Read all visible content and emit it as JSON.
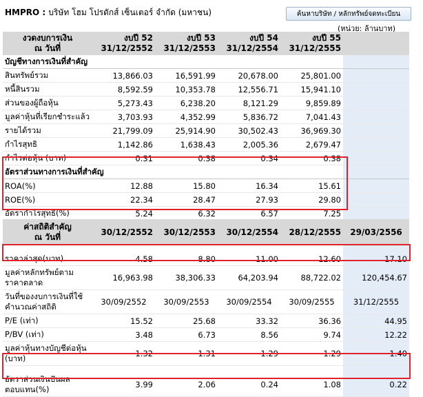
{
  "header": {
    "ticker": "HMPRO",
    "separator": " : ",
    "company_name": "บริษัท โฮม โปรดักส์ เซ็นเตอร์ จำกัด (มหาชน)",
    "search_button_label": "ค้นหาบริษัท / หลักทรัพย์จดทะเบียน",
    "unit_label": "(หน่วย: ล้านบาท)"
  },
  "financials": {
    "period_label": [
      "งวดงบการเงิน",
      "ณ วันที่"
    ],
    "columns": [
      {
        "period": "งบปี 52",
        "date": "31/12/2552"
      },
      {
        "period": "งบปี 53",
        "date": "31/12/2553"
      },
      {
        "period": "งบปี 54",
        "date": "31/12/2554"
      },
      {
        "period": "งบปี 55",
        "date": "31/12/2555"
      }
    ],
    "accounts_title": "บัญชีทางการเงินที่สำคัญ",
    "accounts": [
      {
        "label": "สินทรัพย์รวม",
        "values": [
          "13,866.03",
          "16,591.99",
          "20,678.00",
          "25,801.00"
        ]
      },
      {
        "label": "หนี้สินรวม",
        "values": [
          "8,592.59",
          "10,353.78",
          "12,556.71",
          "15,941.10"
        ]
      },
      {
        "label": "ส่วนของผู้ถือหุ้น",
        "values": [
          "5,273.43",
          "6,238.20",
          "8,121.29",
          "9,859.89"
        ]
      },
      {
        "label": "มูลค่าหุ้นที่เรียกชำระแล้ว",
        "values": [
          "3,703.93",
          "4,352.99",
          "5,836.72",
          "7,041.43"
        ]
      },
      {
        "label": "รายได้รวม",
        "values": [
          "21,799.09",
          "25,914.90",
          "30,502.43",
          "36,969.30"
        ]
      },
      {
        "label": "กำไรสุทธิ",
        "values": [
          "1,142.86",
          "1,638.43",
          "2,005.36",
          "2,679.47"
        ]
      },
      {
        "label": "กำไรต่อหุ้น (บาท)",
        "values": [
          "0.31",
          "0.38",
          "0.34",
          "0.38"
        ]
      }
    ],
    "ratios_title": "อัตราส่วนทางการเงินที่สำคัญ",
    "ratios": [
      {
        "label": "ROA(%)",
        "values": [
          "12.88",
          "15.80",
          "16.34",
          "15.61"
        ]
      },
      {
        "label": "ROE(%)",
        "values": [
          "22.34",
          "28.47",
          "27.93",
          "29.80"
        ]
      },
      {
        "label": "อัตรากำไรสุทธิ(%)",
        "values": [
          "5.24",
          "6.32",
          "6.57",
          "7.25"
        ]
      }
    ]
  },
  "stats": {
    "label": [
      "ค่าสถิติสำคัญ",
      "ณ วันที่"
    ],
    "dates": [
      "30/12/2552",
      "30/12/2553",
      "30/12/2554",
      "28/12/2555",
      "29/03/2556"
    ],
    "rows": [
      {
        "label": "ราคาล่าสุด(บาท)",
        "values": [
          "4.58",
          "8.80",
          "11.00",
          "12.60",
          "17.10"
        ]
      },
      {
        "label": "มูลค่าหลักทรัพย์ตามราคาตลาด",
        "values": [
          "16,963.98",
          "38,306.33",
          "64,203.94",
          "88,722.02",
          "120,454.67"
        ]
      },
      {
        "label": "วันที่ของงบการเงินที่ใช้คำนวณค่าสถิติ",
        "values": [
          "30/09/2552",
          "30/09/2553",
          "30/09/2554",
          "30/09/2555",
          "31/12/2555"
        ]
      },
      {
        "label": "P/E (เท่า)",
        "values": [
          "15.52",
          "25.68",
          "33.32",
          "36.36",
          "44.95"
        ]
      },
      {
        "label": "P/BV (เท่า)",
        "values": [
          "3.48",
          "6.73",
          "8.56",
          "9.74",
          "12.22"
        ]
      },
      {
        "label": "มูลค่าหุ้นทางบัญชีต่อหุ้น (บาท)",
        "values": [
          "1.32",
          "1.31",
          "1.29",
          "1.29",
          "1.40"
        ]
      },
      {
        "label": "อัตราส่วนเงินปันผลตอบแทน(%)",
        "values": [
          "3.99",
          "2.06",
          "0.24",
          "1.08",
          "0.22"
        ]
      }
    ]
  }
}
